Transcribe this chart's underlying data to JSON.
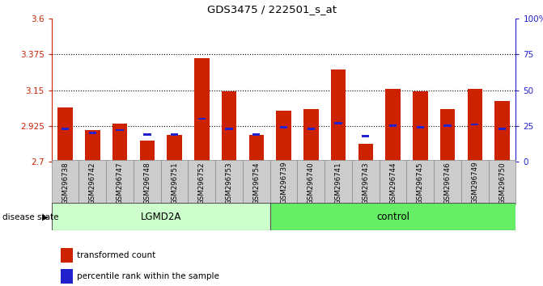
{
  "title": "GDS3475 / 222501_s_at",
  "samples": [
    "GSM296738",
    "GSM296742",
    "GSM296747",
    "GSM296748",
    "GSM296751",
    "GSM296752",
    "GSM296753",
    "GSM296754",
    "GSM296739",
    "GSM296740",
    "GSM296741",
    "GSM296743",
    "GSM296744",
    "GSM296745",
    "GSM296746",
    "GSM296749",
    "GSM296750"
  ],
  "groups": [
    "LGMD2A",
    "LGMD2A",
    "LGMD2A",
    "LGMD2A",
    "LGMD2A",
    "LGMD2A",
    "LGMD2A",
    "LGMD2A",
    "control",
    "control",
    "control",
    "control",
    "control",
    "control",
    "control",
    "control",
    "control"
  ],
  "transformed_counts": [
    3.04,
    2.9,
    2.94,
    2.83,
    2.87,
    3.35,
    3.14,
    2.87,
    3.02,
    3.03,
    3.28,
    2.81,
    3.16,
    3.14,
    3.03,
    3.16,
    3.08
  ],
  "percentile_ranks": [
    23,
    20,
    22,
    19,
    19,
    30,
    23,
    19,
    24,
    23,
    27,
    18,
    25,
    24,
    25,
    26,
    23
  ],
  "ylim_left": [
    2.7,
    3.6
  ],
  "ylim_right": [
    0,
    100
  ],
  "yticks_left": [
    2.7,
    2.925,
    3.15,
    3.375,
    3.6
  ],
  "ytick_labels_left": [
    "2.7",
    "2.925",
    "3.15",
    "3.375",
    "3.6"
  ],
  "yticks_right": [
    0,
    25,
    50,
    75,
    100
  ],
  "ytick_labels_right": [
    "0",
    "25",
    "50",
    "75",
    "100%"
  ],
  "hlines": [
    2.925,
    3.15,
    3.375
  ],
  "bar_color": "#CC2200",
  "blue_color": "#2222CC",
  "lgmd2a_color": "#CCFFCC",
  "control_color": "#66EE66",
  "bar_width": 0.55,
  "legend_items": [
    "transformed count",
    "percentile rank within the sample"
  ],
  "tick_label_bg": "#CCCCCC",
  "base_value": 2.7,
  "lgmd2a_count": 8,
  "control_count": 9
}
